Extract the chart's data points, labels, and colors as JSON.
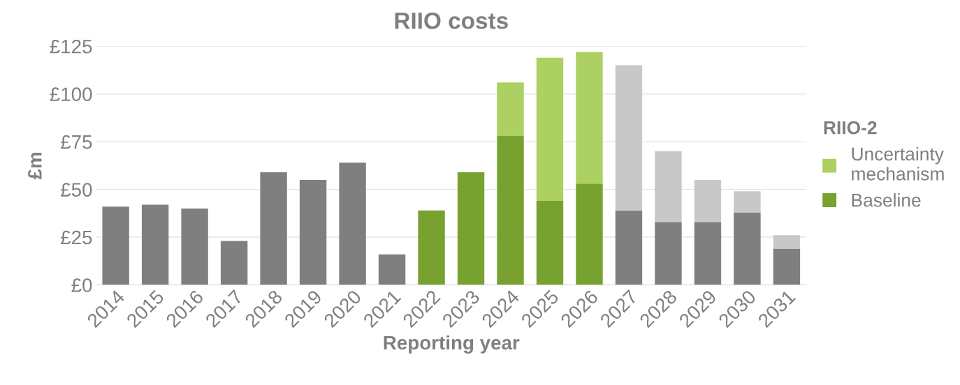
{
  "chart_data": {
    "type": "bar",
    "title": "RIIO costs",
    "xlabel": "Reporting year",
    "ylabel": "£m",
    "legend_title": "RIIO-2",
    "categories": [
      "2014",
      "2015",
      "2016",
      "2017",
      "2018",
      "2019",
      "2020",
      "2021",
      "2022",
      "2023",
      "2024",
      "2025",
      "2026",
      "2027",
      "2028",
      "2029",
      "2030",
      "2031"
    ],
    "stacked": true,
    "series": [
      {
        "name": "Baseline",
        "color": "#78a22f",
        "values": [
          41,
          42,
          40,
          23,
          59,
          55,
          64,
          16,
          39,
          59,
          78,
          44,
          53,
          39,
          33,
          33,
          38,
          19
        ],
        "colors": [
          "#7f7f7f",
          "#7f7f7f",
          "#7f7f7f",
          "#7f7f7f",
          "#7f7f7f",
          "#7f7f7f",
          "#7f7f7f",
          "#7f7f7f",
          "#78a22f",
          "#78a22f",
          "#78a22f",
          "#78a22f",
          "#78a22f",
          "#7f7f7f",
          "#7f7f7f",
          "#7f7f7f",
          "#7f7f7f",
          "#7f7f7f"
        ]
      },
      {
        "name": "Uncertainty mechanism",
        "color": "#acd062",
        "values": [
          null,
          null,
          null,
          null,
          null,
          null,
          null,
          null,
          null,
          null,
          28,
          75,
          69,
          76,
          37,
          22,
          11,
          7
        ],
        "colors": [
          "#c8c8c8",
          "#c8c8c8",
          "#c8c8c8",
          "#c8c8c8",
          "#c8c8c8",
          "#c8c8c8",
          "#c8c8c8",
          "#c8c8c8",
          "#acd062",
          "#acd062",
          "#acd062",
          "#acd062",
          "#acd062",
          "#c8c8c8",
          "#c8c8c8",
          "#c8c8c8",
          "#c8c8c8",
          "#c8c8c8"
        ]
      }
    ],
    "ylim": [
      0,
      125
    ],
    "yticks": [
      {
        "value": 0,
        "label": "£0"
      },
      {
        "value": 25,
        "label": "£25"
      },
      {
        "value": 50,
        "label": "£50"
      },
      {
        "value": 75,
        "label": "£75"
      },
      {
        "value": 100,
        "label": "£100"
      },
      {
        "value": 125,
        "label": "£125"
      }
    ],
    "grid": "y",
    "legend": "right"
  }
}
